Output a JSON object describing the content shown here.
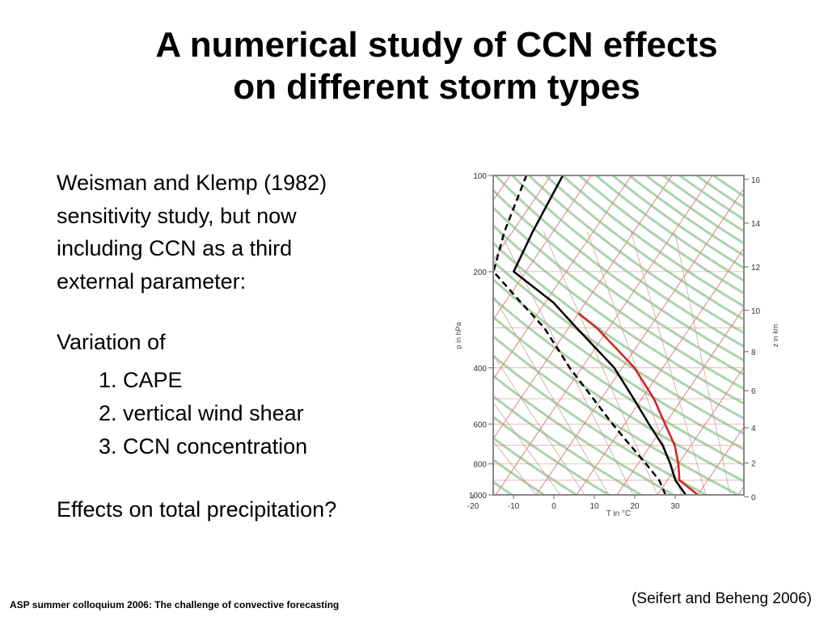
{
  "title": {
    "line1": "A numerical study of CCN effects",
    "line2": "on different storm types"
  },
  "intro": {
    "line1": "Weisman and Klemp (1982)",
    "line2": "sensitivity study, but now",
    "line3": "including CCN as a third",
    "line4": "external parameter:"
  },
  "variation": {
    "heading": "Variation of",
    "items": [
      "1. CAPE",
      "2. vertical wind shear",
      "3. CCN concentration"
    ]
  },
  "question": "Effects on total precipitation?",
  "citation": "(Seifert and Beheng 2006)",
  "footer": "ASP summer colloquium 2006: The challenge of convective forecasting",
  "chart_data": {
    "type": "line",
    "xlabel": "T in °C",
    "ylabel_left": "p in hPa",
    "ylabel_right": "z in km",
    "pressure_ticks": [
      100,
      200,
      400,
      600,
      800,
      1000
    ],
    "height_ticks": [
      0,
      2,
      4,
      6,
      8,
      10,
      12,
      14,
      16
    ],
    "temperature_ticks": [
      -20,
      -10,
      0,
      10,
      20,
      30
    ],
    "series": [
      {
        "style": "solid",
        "color": "#000000",
        "points": [
          [
            1000,
            27
          ],
          [
            900,
            22
          ],
          [
            800,
            18
          ],
          [
            700,
            13
          ],
          [
            600,
            6
          ],
          [
            500,
            -2
          ],
          [
            400,
            -12
          ],
          [
            300,
            -28
          ],
          [
            250,
            -38
          ],
          [
            200,
            -53
          ],
          [
            150,
            -55
          ],
          [
            100,
            -57
          ]
        ]
      },
      {
        "style": "dashed",
        "color": "#000000",
        "points": [
          [
            1000,
            22
          ],
          [
            900,
            18
          ],
          [
            800,
            12
          ],
          [
            700,
            5
          ],
          [
            600,
            -3
          ],
          [
            500,
            -12
          ],
          [
            400,
            -23
          ],
          [
            300,
            -36
          ],
          [
            250,
            -46
          ],
          [
            200,
            -58
          ],
          [
            150,
            -62
          ],
          [
            100,
            -66
          ]
        ]
      },
      {
        "style": "solid",
        "color": "#d62020",
        "points": [
          [
            1000,
            30
          ],
          [
            900,
            23
          ],
          [
            800,
            20
          ],
          [
            700,
            16
          ],
          [
            600,
            10
          ],
          [
            500,
            3
          ],
          [
            400,
            -7
          ],
          [
            300,
            -23
          ],
          [
            270,
            -30
          ]
        ]
      }
    ],
    "colors": {
      "isotherm": "#d98585",
      "isobar": "#d98585",
      "adiabat": "#9ccc9c",
      "frame": "#888888"
    }
  }
}
